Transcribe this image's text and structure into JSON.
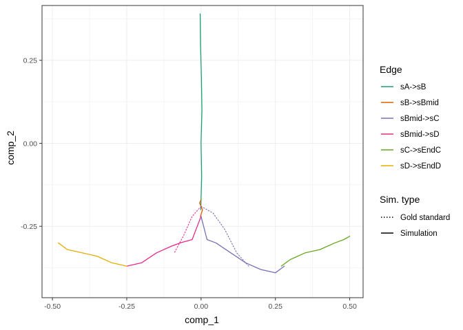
{
  "chart_data": {
    "type": "line",
    "title": "",
    "xlabel": "comp_1",
    "ylabel": "comp_2",
    "xlim": [
      -0.535,
      0.545
    ],
    "ylim": [
      -0.465,
      0.415
    ],
    "x_ticks": [
      -0.5,
      -0.25,
      0.0,
      0.25,
      0.5
    ],
    "x_tick_labels": [
      "-0.50",
      "-0.25",
      "0.00",
      "0.25",
      "0.50"
    ],
    "y_ticks": [
      -0.25,
      0.0,
      0.25
    ],
    "y_tick_labels": [
      "-0.25",
      "0.00",
      "0.25"
    ],
    "grid": true,
    "legend_position": "right",
    "legend": {
      "edge_title": "Edge",
      "edge_entries": [
        {
          "name": "sA->sB",
          "color": "#1B9E77"
        },
        {
          "name": "sB->sBmid",
          "color": "#D95F02"
        },
        {
          "name": "sBmid->sC",
          "color": "#7570B3"
        },
        {
          "name": "sBmid->sD",
          "color": "#E7298A"
        },
        {
          "name": "sC->sEndC",
          "color": "#66A61E"
        },
        {
          "name": "sD->sEndD",
          "color": "#E6AB02"
        }
      ],
      "simtype_title": "Sim. type",
      "simtype_entries": [
        {
          "name": "Gold standard",
          "linetype": "dotted"
        },
        {
          "name": "Simulation",
          "linetype": "solid"
        }
      ]
    },
    "series": [
      {
        "edge": "sA->sB",
        "simtype": "Simulation",
        "color": "#1B9E77",
        "x": [
          -0.003,
          -0.002,
          0.001,
          0.003,
          0.0,
          0.002,
          0.0,
          -0.001
        ],
        "y": [
          0.39,
          0.3,
          0.2,
          0.1,
          0.0,
          -0.1,
          -0.17,
          -0.2
        ]
      },
      {
        "edge": "sB->sBmid",
        "simtype": "Simulation",
        "color": "#D95F02",
        "x": [
          0.0,
          -0.005,
          0.005,
          -0.002
        ],
        "y": [
          -0.17,
          -0.18,
          -0.2,
          -0.22
        ]
      },
      {
        "edge": "sBmid->sC",
        "simtype": "Simulation",
        "color": "#7570B3",
        "x": [
          0.0,
          0.02,
          0.05,
          0.1,
          0.15,
          0.2,
          0.25,
          0.28
        ],
        "y": [
          -0.22,
          -0.29,
          -0.3,
          -0.33,
          -0.36,
          -0.38,
          -0.39,
          -0.37
        ]
      },
      {
        "edge": "sBmid->sD",
        "simtype": "Simulation",
        "color": "#E7298A",
        "x": [
          0.0,
          -0.03,
          -0.07,
          -0.1,
          -0.15,
          -0.2,
          -0.25
        ],
        "y": [
          -0.22,
          -0.29,
          -0.3,
          -0.31,
          -0.33,
          -0.36,
          -0.37
        ]
      },
      {
        "edge": "sC->sEndC",
        "simtype": "Simulation",
        "color": "#66A61E",
        "x": [
          0.27,
          0.3,
          0.35,
          0.4,
          0.45,
          0.48,
          0.5
        ],
        "y": [
          -0.37,
          -0.35,
          -0.33,
          -0.32,
          -0.3,
          -0.29,
          -0.28
        ]
      },
      {
        "edge": "sD->sEndD",
        "simtype": "Simulation",
        "color": "#E6AB02",
        "x": [
          -0.25,
          -0.3,
          -0.35,
          -0.4,
          -0.45,
          -0.48
        ],
        "y": [
          -0.37,
          -0.36,
          -0.34,
          -0.33,
          -0.32,
          -0.3
        ]
      },
      {
        "edge": "sBmid->sC",
        "simtype": "Gold standard",
        "color": "#7570B3",
        "x": [
          0.0,
          0.04,
          0.08,
          0.12,
          0.16
        ],
        "y": [
          -0.19,
          -0.21,
          -0.26,
          -0.33,
          -0.37
        ]
      },
      {
        "edge": "sBmid->sD",
        "simtype": "Gold standard",
        "color": "#E7298A",
        "x": [
          0.0,
          -0.03,
          -0.06,
          -0.09
        ],
        "y": [
          -0.19,
          -0.22,
          -0.28,
          -0.33
        ]
      }
    ]
  }
}
